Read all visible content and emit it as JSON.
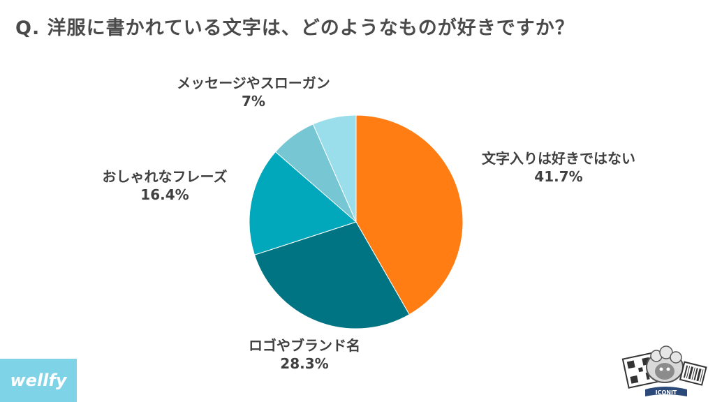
{
  "question": "Q. 洋服に書かれている文字は、どのようなものが好きですか？",
  "chart_data": {
    "type": "pie",
    "title": "Q. 洋服に書かれている文字は、どのようなものが好きですか？",
    "start": "12 o'clock, clockwise",
    "slices": [
      {
        "label": "文字入りは好きではない",
        "value": 41.7,
        "pct_text": "41.7%",
        "color": "#FF7D13"
      },
      {
        "label": "ロゴやブランド名",
        "value": 28.3,
        "pct_text": "28.3%",
        "color": "#007482"
      },
      {
        "label": "おしゃれなフレーズ",
        "value": 16.4,
        "pct_text": "16.4%",
        "color": "#01A7BA"
      },
      {
        "label": "メッセージやスローガン",
        "value": 7,
        "pct_text": "7%",
        "color": "#77C6D3"
      },
      {
        "label": "",
        "value": 6.6,
        "pct_text": "",
        "color": "#99DEEA"
      }
    ]
  },
  "brand": {
    "text": "wellfy",
    "color": "#7FD3E6"
  },
  "badge": {
    "text": "ICONIT"
  }
}
